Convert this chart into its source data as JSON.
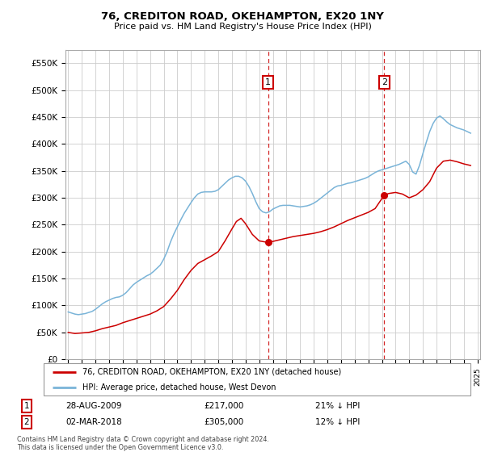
{
  "title": "76, CREDITON ROAD, OKEHAMPTON, EX20 1NY",
  "subtitle": "Price paid vs. HM Land Registry's House Price Index (HPI)",
  "ylabel_ticks": [
    "£0",
    "£50K",
    "£100K",
    "£150K",
    "£200K",
    "£250K",
    "£300K",
    "£350K",
    "£400K",
    "£450K",
    "£500K",
    "£550K"
  ],
  "ytick_values": [
    0,
    50000,
    100000,
    150000,
    200000,
    250000,
    300000,
    350000,
    400000,
    450000,
    500000,
    550000
  ],
  "ylim": [
    0,
    575000
  ],
  "year_start": 1995,
  "year_end": 2025,
  "sale1_year": 2009.65,
  "sale1_price": 217000,
  "sale1_date": "28-AUG-2009",
  "sale1_pct": "21% ↓ HPI",
  "sale2_year": 2018.17,
  "sale2_price": 305000,
  "sale2_date": "02-MAR-2018",
  "sale2_pct": "12% ↓ HPI",
  "hpi_color": "#7ab4d8",
  "sale_color": "#cc0000",
  "vline_color": "#cc0000",
  "grid_color": "#cccccc",
  "background_color": "#ffffff",
  "legend_label_sale": "76, CREDITON ROAD, OKEHAMPTON, EX20 1NY (detached house)",
  "legend_label_hpi": "HPI: Average price, detached house, West Devon",
  "footnote": "Contains HM Land Registry data © Crown copyright and database right 2024.\nThis data is licensed under the Open Government Licence v3.0.",
  "hpi_data_years": [
    1995.0,
    1995.25,
    1995.5,
    1995.75,
    1996.0,
    1996.25,
    1996.5,
    1996.75,
    1997.0,
    1997.25,
    1997.5,
    1997.75,
    1998.0,
    1998.25,
    1998.5,
    1998.75,
    1999.0,
    1999.25,
    1999.5,
    1999.75,
    2000.0,
    2000.25,
    2000.5,
    2000.75,
    2001.0,
    2001.25,
    2001.5,
    2001.75,
    2002.0,
    2002.25,
    2002.5,
    2002.75,
    2003.0,
    2003.25,
    2003.5,
    2003.75,
    2004.0,
    2004.25,
    2004.5,
    2004.75,
    2005.0,
    2005.25,
    2005.5,
    2005.75,
    2006.0,
    2006.25,
    2006.5,
    2006.75,
    2007.0,
    2007.25,
    2007.5,
    2007.75,
    2008.0,
    2008.25,
    2008.5,
    2008.75,
    2009.0,
    2009.25,
    2009.5,
    2009.75,
    2010.0,
    2010.25,
    2010.5,
    2010.75,
    2011.0,
    2011.25,
    2011.5,
    2011.75,
    2012.0,
    2012.25,
    2012.5,
    2012.75,
    2013.0,
    2013.25,
    2013.5,
    2013.75,
    2014.0,
    2014.25,
    2014.5,
    2014.75,
    2015.0,
    2015.25,
    2015.5,
    2015.75,
    2016.0,
    2016.25,
    2016.5,
    2016.75,
    2017.0,
    2017.25,
    2017.5,
    2017.75,
    2018.0,
    2018.25,
    2018.5,
    2018.75,
    2019.0,
    2019.25,
    2019.5,
    2019.75,
    2020.0,
    2020.25,
    2020.5,
    2020.75,
    2021.0,
    2021.25,
    2021.5,
    2021.75,
    2022.0,
    2022.25,
    2022.5,
    2022.75,
    2023.0,
    2023.25,
    2023.5,
    2023.75,
    2024.0,
    2024.25,
    2024.5
  ],
  "hpi_data_values": [
    88000,
    86000,
    84000,
    83000,
    84000,
    85000,
    87000,
    89000,
    93000,
    98000,
    103000,
    107000,
    110000,
    113000,
    115000,
    116000,
    119000,
    124000,
    131000,
    138000,
    143000,
    147000,
    151000,
    155000,
    158000,
    163000,
    169000,
    175000,
    186000,
    200000,
    218000,
    233000,
    246000,
    259000,
    271000,
    281000,
    291000,
    300000,
    307000,
    310000,
    311000,
    311000,
    311000,
    312000,
    315000,
    321000,
    327000,
    333000,
    337000,
    340000,
    340000,
    337000,
    331000,
    321000,
    308000,
    293000,
    280000,
    274000,
    272000,
    274000,
    279000,
    282000,
    285000,
    286000,
    286000,
    286000,
    285000,
    284000,
    283000,
    284000,
    285000,
    287000,
    290000,
    294000,
    299000,
    304000,
    309000,
    314000,
    319000,
    322000,
    323000,
    325000,
    327000,
    328000,
    330000,
    332000,
    334000,
    336000,
    339000,
    343000,
    347000,
    350000,
    352000,
    354000,
    356000,
    358000,
    360000,
    362000,
    365000,
    368000,
    362000,
    348000,
    344000,
    360000,
    382000,
    403000,
    423000,
    438000,
    448000,
    452000,
    447000,
    441000,
    436000,
    433000,
    430000,
    428000,
    426000,
    423000,
    420000
  ],
  "sale_data_years": [
    1995.0,
    1995.5,
    1996.0,
    1996.5,
    1997.0,
    1997.5,
    1998.0,
    1998.5,
    1999.0,
    1999.5,
    2000.0,
    2000.5,
    2001.0,
    2001.5,
    2002.0,
    2002.5,
    2003.0,
    2003.5,
    2004.0,
    2004.5,
    2005.0,
    2005.5,
    2006.0,
    2006.5,
    2007.0,
    2007.33,
    2007.67,
    2008.0,
    2008.5,
    2009.0,
    2009.65,
    2010.0,
    2010.5,
    2011.0,
    2011.5,
    2012.0,
    2012.5,
    2013.0,
    2013.5,
    2014.0,
    2014.5,
    2015.0,
    2015.5,
    2016.0,
    2016.5,
    2017.0,
    2017.5,
    2018.17,
    2018.5,
    2019.0,
    2019.5,
    2020.0,
    2020.5,
    2021.0,
    2021.5,
    2022.0,
    2022.5,
    2023.0,
    2023.5,
    2024.0,
    2024.5
  ],
  "sale_data_values": [
    50000,
    48000,
    49000,
    50000,
    53000,
    57000,
    60000,
    63000,
    68000,
    72000,
    76000,
    80000,
    84000,
    90000,
    98000,
    112000,
    128000,
    148000,
    165000,
    178000,
    185000,
    192000,
    200000,
    220000,
    242000,
    256000,
    262000,
    252000,
    232000,
    220000,
    217000,
    219000,
    222000,
    225000,
    228000,
    230000,
    232000,
    234000,
    237000,
    241000,
    246000,
    252000,
    258000,
    263000,
    268000,
    273000,
    280000,
    305000,
    308000,
    310000,
    307000,
    300000,
    305000,
    315000,
    330000,
    355000,
    368000,
    370000,
    367000,
    363000,
    360000
  ]
}
